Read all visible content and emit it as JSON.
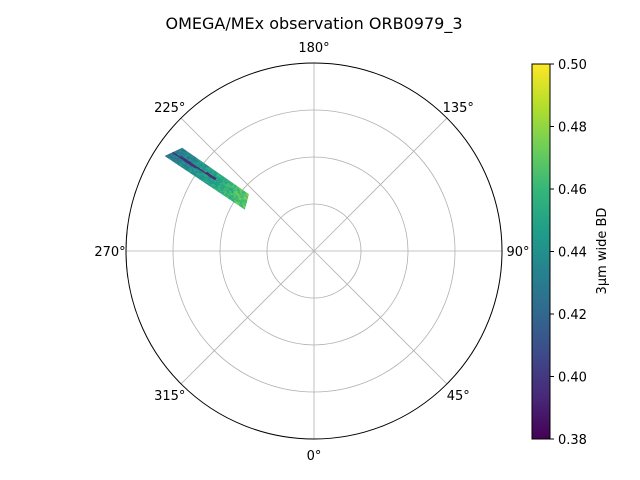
{
  "chart_data": {
    "type": "heatmap",
    "projection": "polar",
    "title": "OMEGA/MEx observation ORB0979_3",
    "theta_tick_labels": [
      {
        "angle_deg": 180,
        "label": "180°"
      },
      {
        "angle_deg": 135,
        "label": "135°"
      },
      {
        "angle_deg": 90,
        "label": "90°"
      },
      {
        "angle_deg": 45,
        "label": "45°"
      },
      {
        "angle_deg": 0,
        "label": "0°"
      },
      {
        "angle_deg": 315,
        "label": "315°"
      },
      {
        "angle_deg": 270,
        "label": "270°"
      },
      {
        "angle_deg": 225,
        "label": "225°"
      }
    ],
    "theta_zero_location": "bottom",
    "theta_direction": "counterclockwise",
    "radial_gridlines": [
      0.25,
      0.5,
      0.75
    ],
    "radial_tick_labels_shown": false,
    "grid": true,
    "swath": {
      "description_hidden": true,
      "corner_points_polar": [
        {
          "theta_deg": 237.5,
          "r": 0.94
        },
        {
          "theta_deg": 232.0,
          "r": 0.89
        },
        {
          "theta_deg": 229.0,
          "r": 0.46
        },
        {
          "theta_deg": 239.0,
          "r": 0.43
        }
      ],
      "value_range_observed": [
        0.38,
        0.48
      ],
      "dominant_value_near_edge": 0.43,
      "dominant_value_near_center": 0.47
    },
    "colorbar": {
      "label": "3µm wide BD",
      "colormap": "viridis",
      "vmin": 0.38,
      "vmax": 0.5,
      "ticks": [
        "0.38",
        "0.40",
        "0.42",
        "0.44",
        "0.46",
        "0.48",
        "0.50"
      ],
      "colors": [
        "#440154",
        "#482878",
        "#3e4989",
        "#31688e",
        "#26828e",
        "#1f9e89",
        "#35b779",
        "#6ece58",
        "#b5de2b",
        "#fde725"
      ]
    }
  }
}
